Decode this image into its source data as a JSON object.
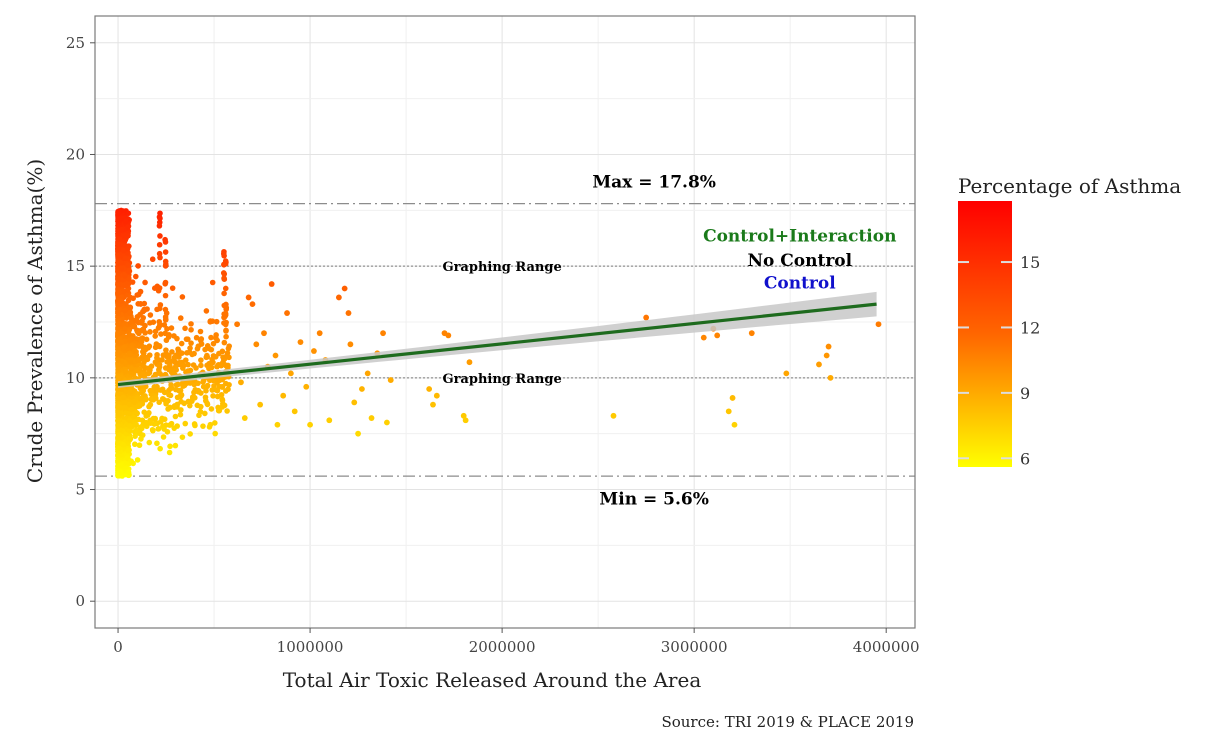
{
  "chart_data": {
    "type": "scatter",
    "xlabel": "Total Air Toxic Released Around the Area",
    "ylabel": "Crude Prevalence of Asthma(%)",
    "xlim": [
      -120000,
      4150000
    ],
    "ylim": [
      -1.2,
      26.2
    ],
    "x_ticks": [
      0,
      1000000,
      2000000,
      3000000,
      4000000
    ],
    "x_tick_labels": [
      "0",
      "1000000",
      "2000000",
      "3000000",
      "4000000"
    ],
    "y_ticks": [
      0,
      5,
      10,
      15,
      20,
      25
    ],
    "y_tick_labels": [
      "0",
      "5",
      "10",
      "15",
      "20",
      "25"
    ],
    "grid": true,
    "reference_lines": [
      {
        "y": 17.8,
        "style": "dashdot",
        "label": "Max = 17.8%",
        "label_x": 3000000,
        "label_y": 18.8
      },
      {
        "y": 5.6,
        "style": "dashdot",
        "label": "Min = 5.6%",
        "label_x": 3000000,
        "label_y": 4.6
      }
    ],
    "range_lines": [
      {
        "y": 15,
        "style": "dotted",
        "label": "Graphing Range",
        "label_x": 2000000
      },
      {
        "y": 10,
        "style": "dotted",
        "label": "Graphing Range",
        "label_x": 2000000
      }
    ],
    "fit_lines": [
      {
        "name": "Control+Interaction",
        "color": "#1a7a1a",
        "label_x": 3550000,
        "label_y": 16.1
      },
      {
        "name": "No Control",
        "color": "#000000",
        "label_x": 3550000,
        "label_y": 15.0
      },
      {
        "name": "Control",
        "color": "#1010cc",
        "label_x": 3550000,
        "label_y": 14.0
      }
    ],
    "regression": {
      "x": [
        0,
        3950000
      ],
      "y": [
        9.7,
        13.3
      ],
      "band_start": 0.15,
      "band_end": 0.55,
      "color": "#1e6b1e"
    },
    "points_dense_cluster": {
      "x_range": [
        0,
        600000
      ],
      "y_range": [
        5.6,
        17.8
      ]
    },
    "points_sparse": [
      {
        "x": 620000,
        "y": 12.4
      },
      {
        "x": 640000,
        "y": 9.8
      },
      {
        "x": 660000,
        "y": 8.2
      },
      {
        "x": 680000,
        "y": 13.6
      },
      {
        "x": 700000,
        "y": 13.3
      },
      {
        "x": 720000,
        "y": 11.5
      },
      {
        "x": 740000,
        "y": 8.8
      },
      {
        "x": 760000,
        "y": 12.0
      },
      {
        "x": 780000,
        "y": 10.5
      },
      {
        "x": 800000,
        "y": 14.2
      },
      {
        "x": 820000,
        "y": 11.0
      },
      {
        "x": 830000,
        "y": 7.9
      },
      {
        "x": 860000,
        "y": 9.2
      },
      {
        "x": 880000,
        "y": 12.9
      },
      {
        "x": 900000,
        "y": 10.2
      },
      {
        "x": 920000,
        "y": 8.5
      },
      {
        "x": 950000,
        "y": 11.6
      },
      {
        "x": 980000,
        "y": 9.6
      },
      {
        "x": 1000000,
        "y": 7.9
      },
      {
        "x": 1020000,
        "y": 11.2
      },
      {
        "x": 1050000,
        "y": 12.0
      },
      {
        "x": 1080000,
        "y": 10.8
      },
      {
        "x": 1100000,
        "y": 8.1
      },
      {
        "x": 1150000,
        "y": 13.6
      },
      {
        "x": 1180000,
        "y": 14.0
      },
      {
        "x": 1200000,
        "y": 12.9
      },
      {
        "x": 1210000,
        "y": 11.5
      },
      {
        "x": 1230000,
        "y": 8.9
      },
      {
        "x": 1250000,
        "y": 7.5
      },
      {
        "x": 1270000,
        "y": 9.5
      },
      {
        "x": 1300000,
        "y": 10.2
      },
      {
        "x": 1320000,
        "y": 8.2
      },
      {
        "x": 1350000,
        "y": 11.1
      },
      {
        "x": 1380000,
        "y": 12.0
      },
      {
        "x": 1400000,
        "y": 8.0
      },
      {
        "x": 1420000,
        "y": 9.9
      },
      {
        "x": 1620000,
        "y": 9.5
      },
      {
        "x": 1640000,
        "y": 8.8
      },
      {
        "x": 1660000,
        "y": 9.2
      },
      {
        "x": 1700000,
        "y": 12.0
      },
      {
        "x": 1720000,
        "y": 11.9
      },
      {
        "x": 1800000,
        "y": 8.3
      },
      {
        "x": 1810000,
        "y": 8.1
      },
      {
        "x": 1830000,
        "y": 10.7
      },
      {
        "x": 2580000,
        "y": 8.3
      },
      {
        "x": 2750000,
        "y": 12.7
      },
      {
        "x": 3050000,
        "y": 11.8
      },
      {
        "x": 3100000,
        "y": 12.2
      },
      {
        "x": 3120000,
        "y": 11.9
      },
      {
        "x": 3180000,
        "y": 8.5
      },
      {
        "x": 3200000,
        "y": 9.1
      },
      {
        "x": 3210000,
        "y": 7.9
      },
      {
        "x": 3300000,
        "y": 12.0
      },
      {
        "x": 3480000,
        "y": 10.2
      },
      {
        "x": 3650000,
        "y": 10.6
      },
      {
        "x": 3690000,
        "y": 11.0
      },
      {
        "x": 3700000,
        "y": 11.4
      },
      {
        "x": 3710000,
        "y": 10.0
      },
      {
        "x": 3960000,
        "y": 12.4
      }
    ],
    "colorbar": {
      "title": "Percentage of Asthma",
      "range": [
        5.6,
        17.8
      ],
      "ticks": [
        6,
        9,
        12,
        15
      ],
      "tick_labels": [
        "6",
        "9",
        "12",
        "15"
      ],
      "colors": [
        "#ffff00",
        "#ff6600",
        "#ff0000"
      ]
    },
    "point_color_scale": [
      "#ffff00",
      "#ff8800",
      "#ff1a00"
    ]
  },
  "caption": "Source: TRI 2019 & PLACE 2019"
}
